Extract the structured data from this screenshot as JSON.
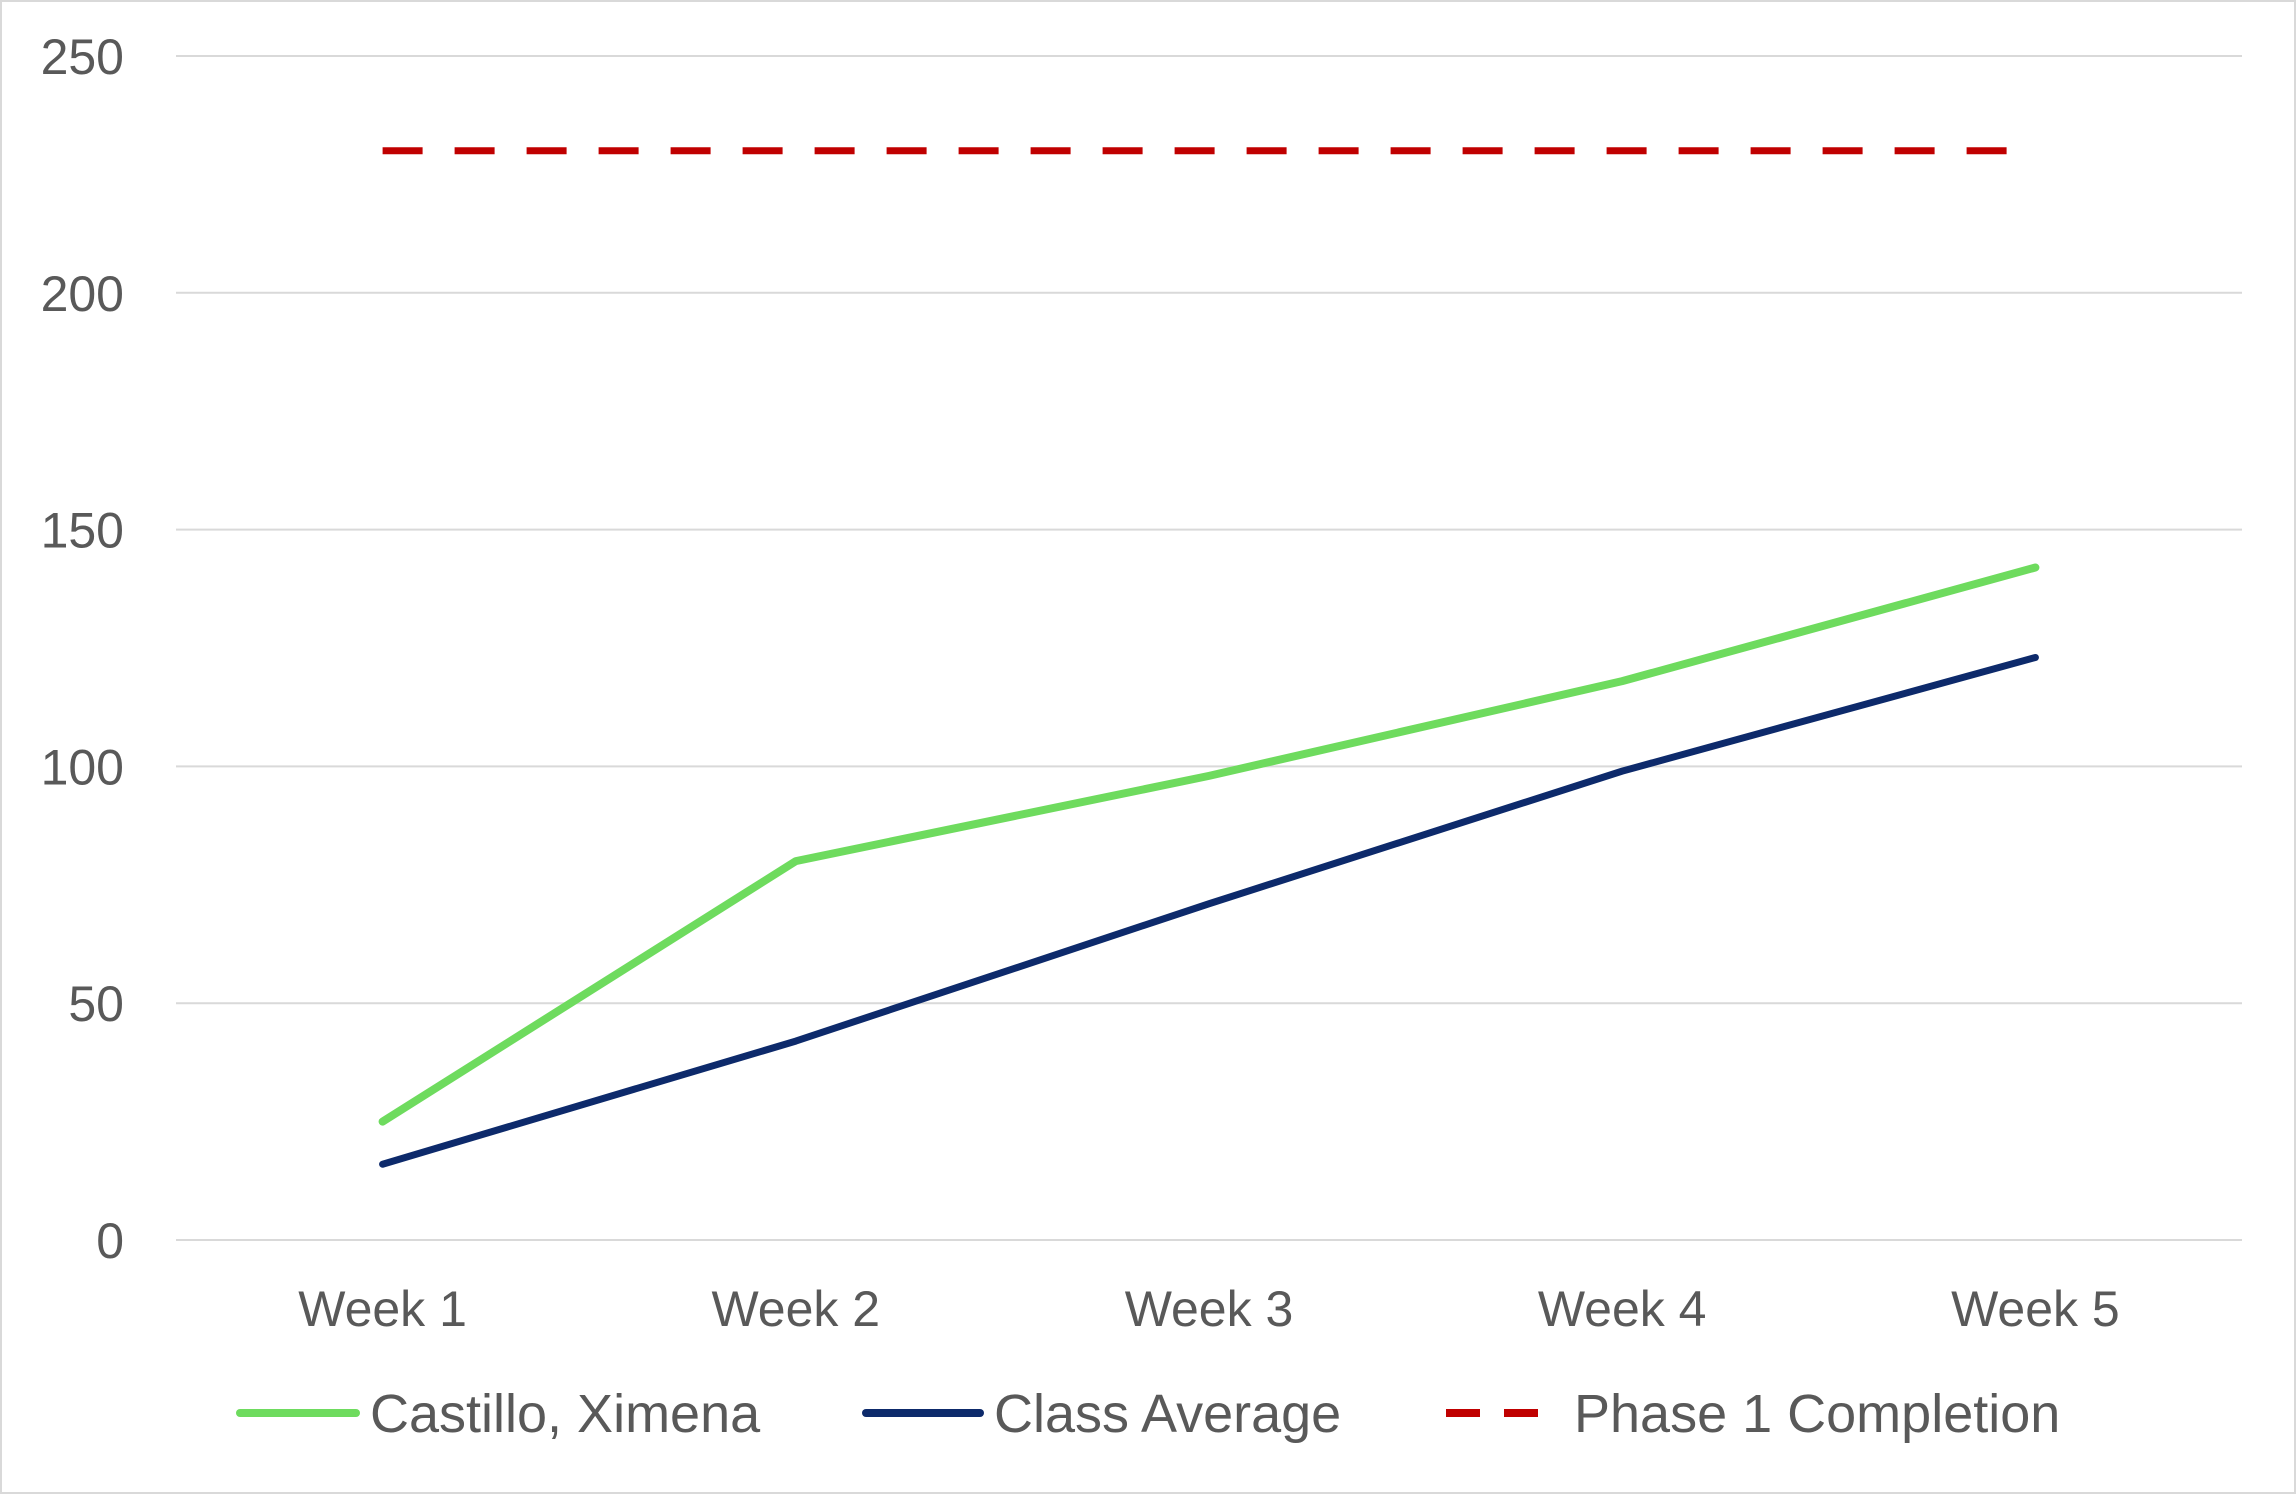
{
  "chart_data": {
    "type": "line",
    "title": "",
    "xlabel": "",
    "ylabel": "",
    "categories": [
      "Week 1",
      "Week 2",
      "Week 3",
      "Week 4",
      "Week 5"
    ],
    "ylim": [
      0,
      250
    ],
    "yticks": [
      0,
      50,
      100,
      150,
      200,
      250
    ],
    "grid": true,
    "legend_position": "bottom",
    "series": [
      {
        "name": "Castillo, Ximena",
        "values": [
          25,
          80,
          98,
          118,
          142
        ],
        "color": "#6EDB5E",
        "style": "solid"
      },
      {
        "name": "Class Average",
        "values": [
          16,
          42,
          71,
          99,
          123
        ],
        "color": "#0D2A6B",
        "style": "solid"
      },
      {
        "name": "Phase 1 Completion",
        "values": [
          230,
          230,
          230,
          230,
          230
        ],
        "color": "#C00000",
        "style": "dashed"
      }
    ]
  }
}
